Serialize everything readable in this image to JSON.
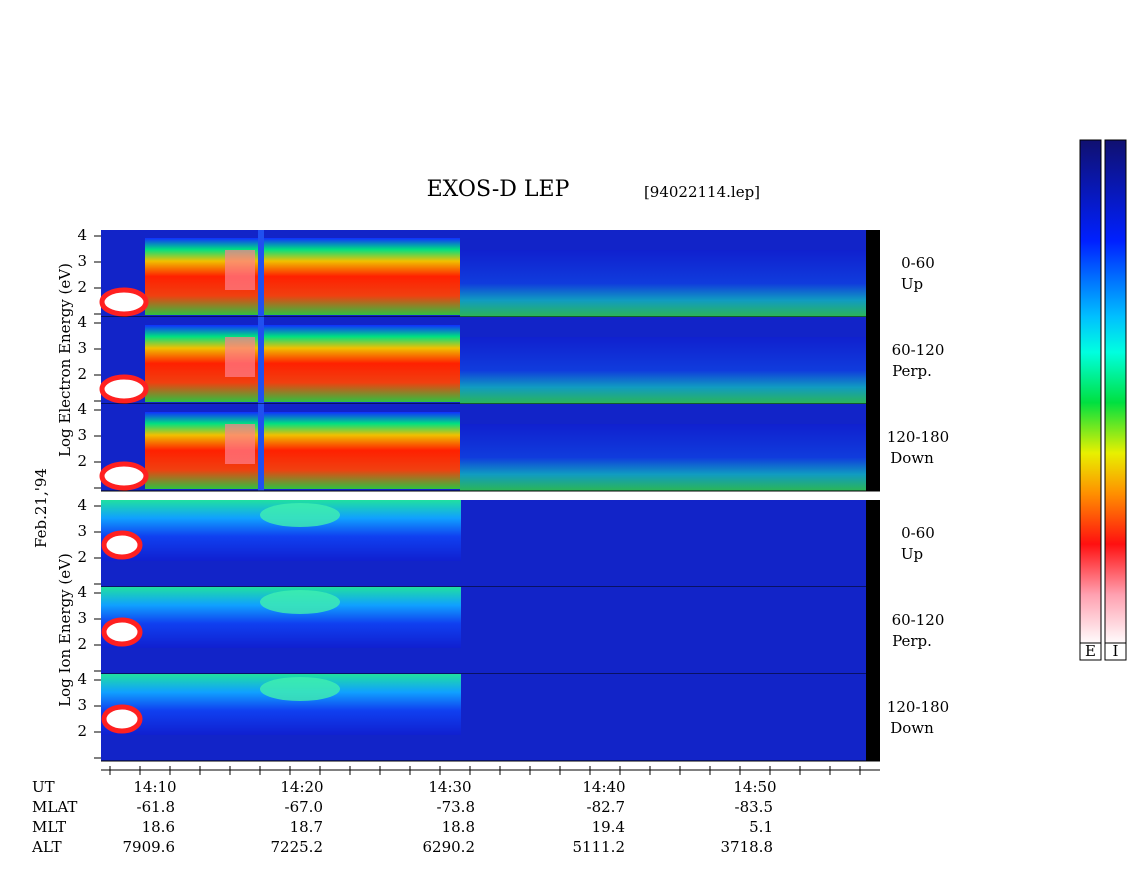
{
  "header": {
    "title": "EXOS-D LEP",
    "file": "[94022114.lep]"
  },
  "left_labels": {
    "electron": "Log  Electron  Energy (eV)",
    "date": "Feb.21,'94",
    "ion": "Log  Ion  Energy (eV)"
  },
  "energy_ticks": [
    "2",
    "3",
    "4"
  ],
  "panels": [
    {
      "angle": "0-60",
      "direction": "Up"
    },
    {
      "angle": "60-120",
      "direction": "Perp."
    },
    {
      "angle": "120-180",
      "direction": "Down"
    },
    {
      "angle": "0-60",
      "direction": "Up"
    },
    {
      "angle": "60-120",
      "direction": "Perp."
    },
    {
      "angle": "120-180",
      "direction": "Down"
    }
  ],
  "time_labels": [
    "14:10",
    "14:20",
    "14:30",
    "14:40",
    "14:50"
  ],
  "ephemeris": [
    {
      "label": "UT",
      "values": []
    },
    {
      "label": "MLAT",
      "values": [
        "-61.8",
        "-67.0",
        "-73.8",
        "-82.7",
        "-83.5"
      ]
    },
    {
      "label": "MLT",
      "values": [
        "18.6",
        "18.7",
        "18.8",
        "19.4",
        "5.1"
      ]
    },
    {
      "label": "ALT",
      "values": [
        "7909.6",
        "7225.2",
        "6290.2",
        "5111.2",
        "3718.8"
      ]
    }
  ],
  "colorbars": [
    "E",
    "I"
  ]
}
